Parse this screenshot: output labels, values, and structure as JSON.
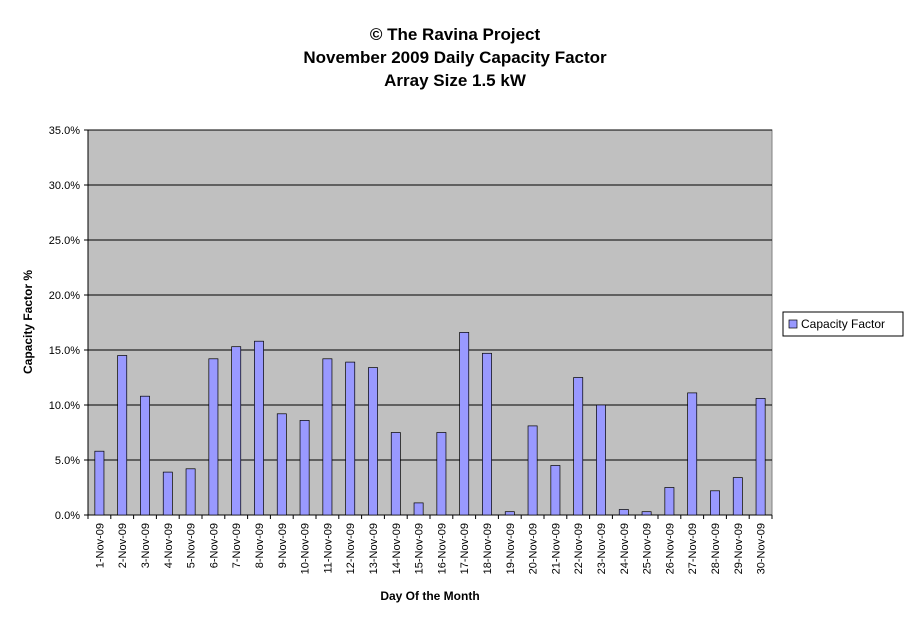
{
  "chart_data": {
    "type": "bar",
    "title": "© The Ravina Project",
    "subtitle": [
      "November 2009 Daily Capacity Factor",
      "Array Size 1.5 kW"
    ],
    "x_label": "Day Of the Month",
    "y_label": "Capacity Factor %",
    "categories": [
      "1-Nov-09",
      "2-Nov-09",
      "3-Nov-09",
      "4-Nov-09",
      "5-Nov-09",
      "6-Nov-09",
      "7-Nov-09",
      "8-Nov-09",
      "9-Nov-09",
      "10-Nov-09",
      "11-Nov-09",
      "12-Nov-09",
      "13-Nov-09",
      "14-Nov-09",
      "15-Nov-09",
      "16-Nov-09",
      "17-Nov-09",
      "18-Nov-09",
      "19-Nov-09",
      "20-Nov-09",
      "21-Nov-09",
      "22-Nov-09",
      "23-Nov-09",
      "24-Nov-09",
      "25-Nov-09",
      "26-Nov-09",
      "27-Nov-09",
      "28-Nov-09",
      "29-Nov-09",
      "30-Nov-09"
    ],
    "series": [
      {
        "name": "Capacity Factor",
        "color": "#9999ff",
        "values": [
          5.8,
          14.5,
          10.8,
          3.9,
          4.2,
          14.2,
          15.3,
          15.8,
          9.2,
          8.6,
          14.2,
          13.9,
          13.4,
          7.5,
          1.1,
          7.5,
          16.6,
          14.7,
          0.3,
          8.1,
          4.5,
          12.5,
          10.0,
          0.5,
          0.3,
          2.5,
          11.1,
          2.2,
          3.4,
          10.6
        ]
      }
    ],
    "ylim": [
      0,
      35
    ],
    "yticks": [
      {
        "value": 0,
        "label": "0.0%"
      },
      {
        "value": 5,
        "label": "5.0%"
      },
      {
        "value": 10,
        "label": "10.0%"
      },
      {
        "value": 15,
        "label": "15.0%"
      },
      {
        "value": 20,
        "label": "20.0%"
      },
      {
        "value": 25,
        "label": "25.0%"
      },
      {
        "value": 30,
        "label": "30.0%"
      },
      {
        "value": 35,
        "label": "35.0%"
      }
    ],
    "grid": true,
    "legend": "right"
  }
}
